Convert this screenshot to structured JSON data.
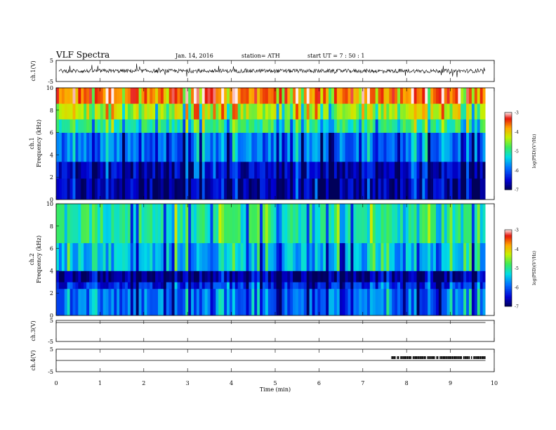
{
  "header": {
    "title": "VLF  Spectra",
    "date": "Jan. 14, 2016",
    "station": "station= ATH",
    "start": "start  UT  =   7  : 50 : 1"
  },
  "chart_data": [
    {
      "type": "line",
      "name": "ch1-waveform",
      "ylabel": "ch.1(V)",
      "ylim": [
        -5,
        5
      ],
      "yticks": [
        "5",
        "-5"
      ],
      "xlim": [
        0,
        10
      ],
      "baseline_volts": 0,
      "color": "#000000"
    },
    {
      "type": "heatmap",
      "name": "ch1-spectrogram",
      "ylabel_channel": "ch.1",
      "ylabel": "Frequency  (kHz)",
      "ylim": [
        0,
        10
      ],
      "yticks": [
        "0",
        "2",
        "4",
        "6",
        "8",
        "10"
      ],
      "xlim": [
        0,
        10
      ],
      "data_end_min": 9.8,
      "bands": [
        {
          "from_khz": 0,
          "to_khz": 1.9,
          "level": -6.7
        },
        {
          "from_khz": 1.9,
          "to_khz": 3.4,
          "level": -6.6
        },
        {
          "from_khz": 3.4,
          "to_khz": 6.0,
          "level": -5.9
        },
        {
          "from_khz": 6.0,
          "to_khz": 7.2,
          "level": -5.0
        },
        {
          "from_khz": 7.2,
          "to_khz": 8.6,
          "level": -4.4
        },
        {
          "from_khz": 8.6,
          "to_khz": 10,
          "level": -3.6
        }
      ],
      "colorbar": {
        "label": "log(PSD)(V²/Hz)",
        "range": [
          -7,
          -3
        ],
        "ticks": [
          "-3",
          "-4",
          "-5",
          "-6",
          "-7"
        ]
      }
    },
    {
      "type": "heatmap",
      "name": "ch2-spectrogram",
      "ylabel_channel": "ch.2",
      "ylabel": "Frequency  (kHz)",
      "ylim": [
        0,
        10
      ],
      "yticks": [
        "0",
        "2",
        "4",
        "6",
        "8",
        "10"
      ],
      "xlim": [
        0,
        10
      ],
      "data_end_min": 9.8,
      "bands": [
        {
          "from_khz": 0,
          "to_khz": 2.4,
          "level": -5.9
        },
        {
          "from_khz": 2.4,
          "to_khz": 3.0,
          "level": -6.3
        },
        {
          "from_khz": 3.0,
          "to_khz": 4.0,
          "level": -6.8
        },
        {
          "from_khz": 4.0,
          "to_khz": 6.5,
          "level": -5.5
        },
        {
          "from_khz": 6.5,
          "to_khz": 10,
          "level": -5.1
        }
      ],
      "colorbar": {
        "label": "log(PSD)(V²/Hz)",
        "range": [
          -7,
          -3
        ],
        "ticks": [
          "-3",
          "-4",
          "-5",
          "-6",
          "-7"
        ]
      }
    },
    {
      "type": "line",
      "name": "ch3-waveform",
      "ylabel": "ch.3(V)",
      "ylim": [
        -5,
        5
      ],
      "yticks": [
        "5",
        "-5"
      ],
      "xlim": [
        0,
        10
      ],
      "baseline_volts": 5
    },
    {
      "type": "line",
      "name": "ch4-waveform",
      "ylabel": "ch.4(V)",
      "ylim": [
        -5,
        5
      ],
      "yticks": [
        "5",
        "-5"
      ],
      "xlim": [
        0,
        10
      ],
      "baseline_volts": 0,
      "burst_start_min": 7.6,
      "burst_end_min": 9.8,
      "xlabel": "Time  (min)",
      "xticks": [
        "0",
        "1",
        "2",
        "3",
        "4",
        "5",
        "6",
        "7",
        "8",
        "9",
        "10"
      ]
    }
  ]
}
